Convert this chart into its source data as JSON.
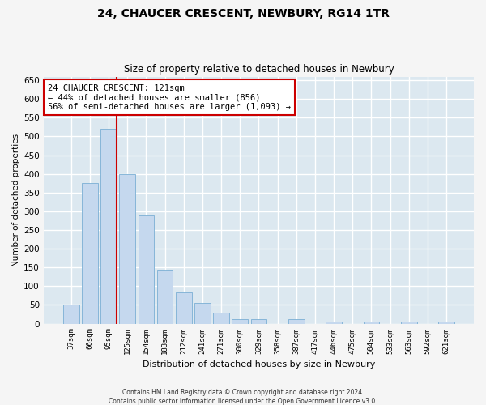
{
  "title": "24, CHAUCER CRESCENT, NEWBURY, RG14 1TR",
  "subtitle": "Size of property relative to detached houses in Newbury",
  "xlabel": "Distribution of detached houses by size in Newbury",
  "ylabel": "Number of detached properties",
  "categories": [
    "37sqm",
    "66sqm",
    "95sqm",
    "125sqm",
    "154sqm",
    "183sqm",
    "212sqm",
    "241sqm",
    "271sqm",
    "300sqm",
    "329sqm",
    "358sqm",
    "387sqm",
    "417sqm",
    "446sqm",
    "475sqm",
    "504sqm",
    "533sqm",
    "563sqm",
    "592sqm",
    "621sqm"
  ],
  "values": [
    50,
    375,
    520,
    400,
    290,
    143,
    83,
    55,
    30,
    12,
    12,
    0,
    12,
    0,
    5,
    0,
    5,
    0,
    5,
    0,
    5
  ],
  "bar_color": "#c5d8ee",
  "bar_edge_color": "#7aafd4",
  "background_color": "#dce8f0",
  "grid_color": "#ffffff",
  "property_line_color": "#cc0000",
  "property_bar_index": 2,
  "annotation_line1": "24 CHAUCER CRESCENT: 121sqm",
  "annotation_line2": "← 44% of detached houses are smaller (856)",
  "annotation_line3": "56% of semi-detached houses are larger (1,093) →",
  "annotation_box_edgecolor": "#cc0000",
  "footer_line1": "Contains HM Land Registry data © Crown copyright and database right 2024.",
  "footer_line2": "Contains public sector information licensed under the Open Government Licence v3.0.",
  "ylim": [
    0,
    660
  ],
  "yticks": [
    0,
    50,
    100,
    150,
    200,
    250,
    300,
    350,
    400,
    450,
    500,
    550,
    600,
    650
  ],
  "fig_facecolor": "#f5f5f5",
  "title_fontsize": 10,
  "subtitle_fontsize": 8.5
}
